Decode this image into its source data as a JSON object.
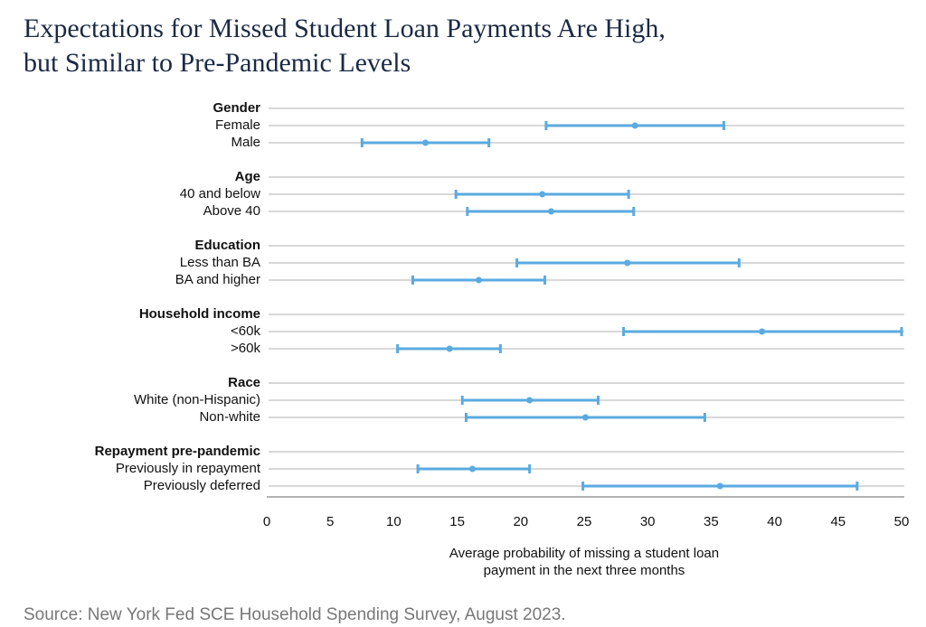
{
  "chart_data": {
    "type": "interval",
    "title": [
      "Expectations for Missed Student Loan Payments Are High,",
      "but Similar to Pre-Pandemic Levels"
    ],
    "xlabel": [
      "Average probability of missing a student loan",
      "payment in the next three months"
    ],
    "source": "Source: New York Fed SCE Household Spending Survey, August 2023.",
    "color": "#5aaae0",
    "grid": true,
    "xlim": [
      0,
      50
    ],
    "xticks": [
      0,
      5,
      10,
      15,
      20,
      25,
      30,
      35,
      40,
      45,
      50
    ],
    "groups": [
      {
        "name": "Gender",
        "categories": [
          "Female",
          "Male"
        ],
        "values": [
          29,
          12.5
        ],
        "lower": [
          22,
          7.5
        ],
        "upper": [
          36,
          17.5
        ]
      },
      {
        "name": "Age",
        "categories": [
          "40 and below",
          "Above 40"
        ],
        "values": [
          21.7,
          22.4
        ],
        "lower": [
          14.9,
          15.8
        ],
        "upper": [
          28.5,
          28.9
        ]
      },
      {
        "name": "Education",
        "categories": [
          "Less than BA",
          "BA and higher"
        ],
        "values": [
          28.4,
          16.7
        ],
        "lower": [
          19.7,
          11.5
        ],
        "upper": [
          37.2,
          21.9
        ]
      },
      {
        "name": "Household income",
        "categories": [
          "<60k",
          ">60k"
        ],
        "values": [
          39,
          14.4
        ],
        "lower": [
          28.1,
          10.3
        ],
        "upper": [
          50,
          18.4
        ]
      },
      {
        "name": "Race",
        "categories": [
          "White (non-Hispanic)",
          "Non-white"
        ],
        "values": [
          20.7,
          25.1
        ],
        "lower": [
          15.4,
          15.7
        ],
        "upper": [
          26.1,
          34.5
        ]
      },
      {
        "name": "Repayment pre-pandemic",
        "categories": [
          "Previously in repayment",
          "Previously deferred"
        ],
        "values": [
          16.2,
          35.7
        ],
        "lower": [
          11.9,
          24.9
        ],
        "upper": [
          20.7,
          46.5
        ]
      }
    ]
  }
}
